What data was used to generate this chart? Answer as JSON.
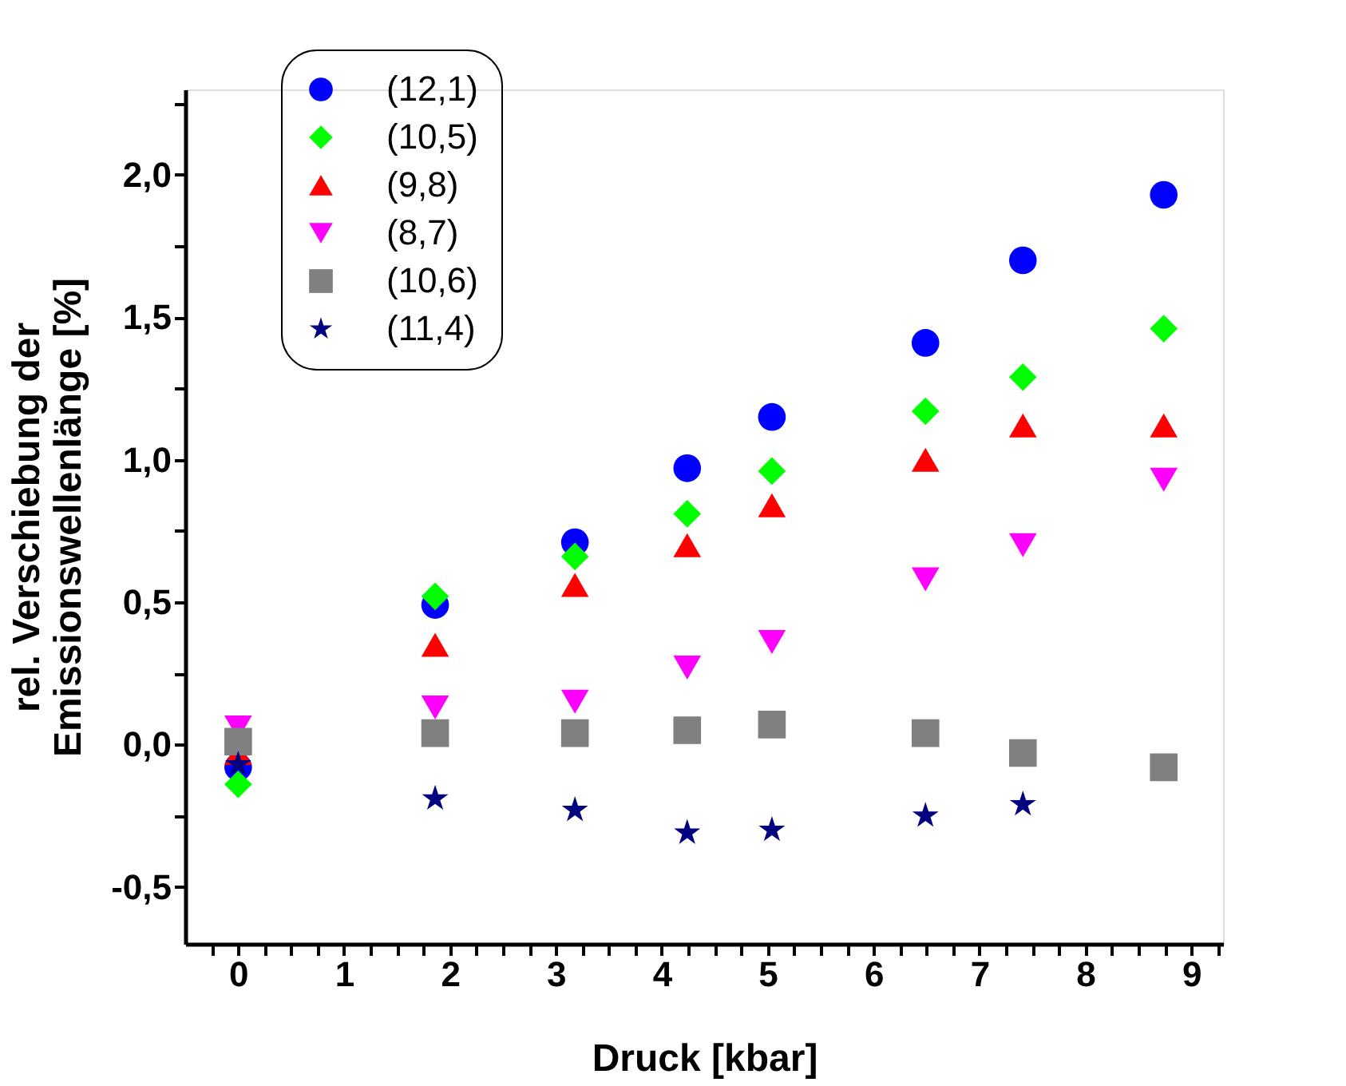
{
  "chart_data": {
    "type": "scatter",
    "xlabel": "Druck  [kbar]",
    "ylabel": "rel. Verschiebung der\nEmissionswellenlänge [%]",
    "x": [
      0,
      1.86,
      3.18,
      4.24,
      5.04,
      6.49,
      7.41,
      8.74
    ],
    "series": [
      {
        "name": "(12,1)",
        "color": "#0000ff",
        "marker": "circle",
        "values": [
          -0.08,
          0.49,
          0.71,
          0.97,
          1.15,
          1.41,
          1.7,
          1.93
        ]
      },
      {
        "name": "(10,5)",
        "color": "#00ff00",
        "marker": "diamond",
        "values": [
          -0.14,
          0.52,
          0.66,
          0.81,
          0.96,
          1.17,
          1.29,
          1.46
        ]
      },
      {
        "name": "(9,8)",
        "color": "#ff0000",
        "marker": "triangle",
        "values": [
          -0.03,
          0.35,
          0.56,
          0.7,
          0.84,
          1.0,
          1.12,
          1.12
        ]
      },
      {
        "name": "(8,7)",
        "color": "#ff00ff",
        "marker": "triangle-down",
        "values": [
          0.06,
          0.13,
          0.15,
          0.27,
          0.36,
          0.58,
          0.7,
          0.93
        ]
      },
      {
        "name": "(10,6)",
        "color": "#808080",
        "marker": "square",
        "values": [
          0.01,
          0.04,
          0.04,
          0.05,
          0.07,
          0.04,
          -0.03,
          -0.08
        ]
      },
      {
        "name": "(11,4)",
        "color": "#000080",
        "marker": "star",
        "values": [
          -0.07,
          -0.19,
          -0.23,
          -0.31,
          -0.3,
          -0.25,
          -0.21,
          null
        ]
      }
    ],
    "xlim": [
      -0.5,
      9.3
    ],
    "xticks": [
      {
        "value": -0.25,
        "label": null
      },
      0,
      {
        "value": 0.25,
        "label": null
      },
      {
        "value": 0.5,
        "label": null
      },
      {
        "value": 0.75,
        "label": null
      },
      1,
      {
        "value": 1.25,
        "label": null
      },
      {
        "value": 1.5,
        "label": null
      },
      {
        "value": 1.75,
        "label": null
      },
      2,
      {
        "value": 2.25,
        "label": null
      },
      {
        "value": 2.5,
        "label": null
      },
      {
        "value": 2.75,
        "label": null
      },
      3,
      {
        "value": 3.25,
        "label": null
      },
      {
        "value": 3.5,
        "label": null
      },
      {
        "value": 3.75,
        "label": null
      },
      4,
      {
        "value": 4.25,
        "label": null
      },
      {
        "value": 4.5,
        "label": null
      },
      {
        "value": 4.75,
        "label": null
      },
      5,
      {
        "value": 5.25,
        "label": null
      },
      {
        "value": 5.5,
        "label": null
      },
      {
        "value": 5.75,
        "label": null
      },
      6,
      {
        "value": 6.25,
        "label": null
      },
      {
        "value": 6.5,
        "label": null
      },
      {
        "value": 6.75,
        "label": null
      },
      7,
      {
        "value": 7.25,
        "label": null
      },
      {
        "value": 7.5,
        "label": null
      },
      {
        "value": 7.75,
        "label": null
      },
      8,
      {
        "value": 8.25,
        "label": null
      },
      {
        "value": 8.5,
        "label": null
      },
      {
        "value": 8.75,
        "label": null
      },
      9,
      {
        "value": 9.25,
        "label": null
      }
    ],
    "ylim": [
      -0.7,
      2.3
    ],
    "yticks": [
      {
        "value": -0.5,
        "label": "-0,5"
      },
      {
        "value": -0.25,
        "label": null
      },
      {
        "value": 0,
        "label": "0,0"
      },
      {
        "value": 0.25,
        "label": null
      },
      {
        "value": 0.5,
        "label": "0,5"
      },
      {
        "value": 0.75,
        "label": null
      },
      {
        "value": 1.0,
        "label": "1,0"
      },
      {
        "value": 1.25,
        "label": null
      },
      {
        "value": 1.5,
        "label": "1,5"
      },
      {
        "value": 1.75,
        "label": null
      },
      {
        "value": 2.0,
        "label": "2,0"
      },
      {
        "value": 2.25,
        "label": null
      }
    ],
    "grid": false,
    "legend": "top left"
  }
}
